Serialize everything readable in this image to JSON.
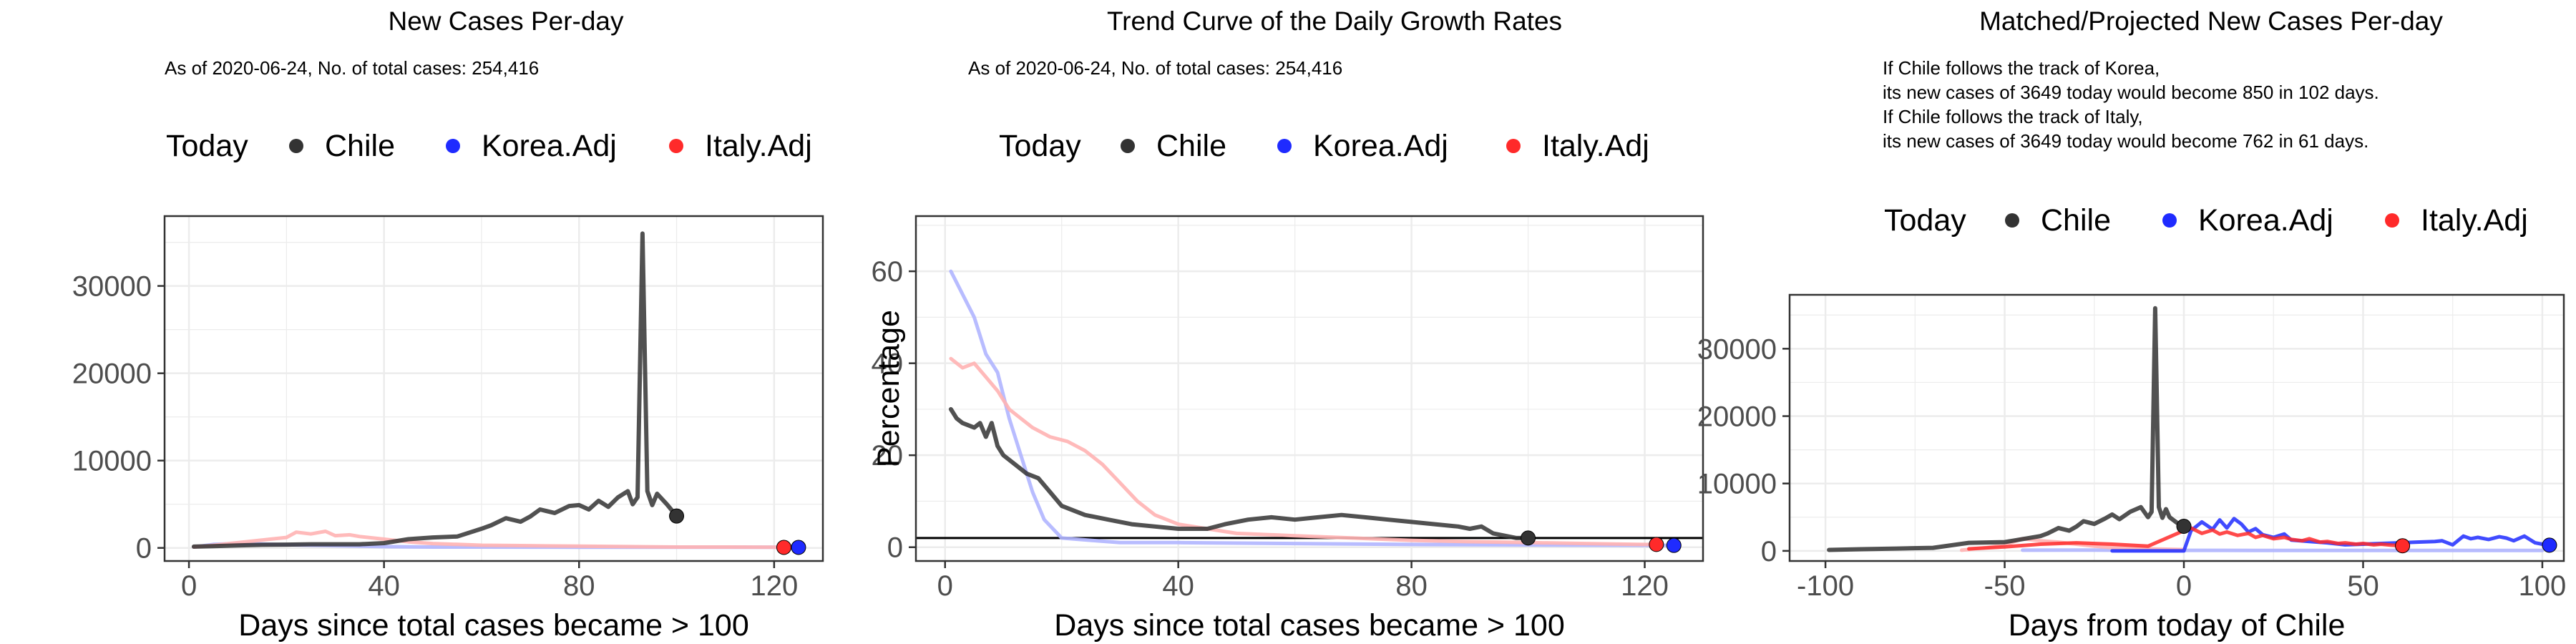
{
  "colors": {
    "today": "#000000",
    "chile": "#333333",
    "korea": "#1f2bff",
    "italy": "#ff2a2a",
    "korea_faded": "#b0b5ff",
    "italy_faded": "#ffb3b3",
    "grid": "#ececec",
    "panel_border": "#333333"
  },
  "chart_data": [
    {
      "type": "line",
      "title": "New Cases Per-day",
      "subtitle": "As of 2020-06-24, No. of total cases: 254,416",
      "legend": {
        "position": "top",
        "title": "Today",
        "entries": [
          "Chile",
          "Korea.Adj",
          "Italy.Adj"
        ]
      },
      "xlabel": "Days since total cases became > 100",
      "ylabel": "",
      "xlim": [
        -5,
        130
      ],
      "ylim": [
        -1500,
        38000
      ],
      "xticks": [
        0,
        40,
        80,
        120
      ],
      "yticks": [
        0,
        10000,
        20000,
        30000
      ],
      "grid": true,
      "series": [
        {
          "name": "Chile",
          "x": [
            1,
            5,
            10,
            15,
            20,
            25,
            30,
            35,
            40,
            45,
            50,
            55,
            60,
            62,
            65,
            68,
            70,
            72,
            75,
            78,
            80,
            82,
            84,
            86,
            88,
            90,
            91,
            92,
            93,
            94,
            95,
            96,
            98,
            100
          ],
          "y": [
            150,
            200,
            280,
            350,
            380,
            420,
            420,
            420,
            550,
            1000,
            1200,
            1300,
            2200,
            2600,
            3400,
            3000,
            3600,
            4400,
            4000,
            4800,
            4900,
            4400,
            5400,
            4700,
            5800,
            6500,
            5000,
            5800,
            36000,
            6500,
            4900,
            6200,
            5000,
            3649
          ]
        },
        {
          "name": "Korea.Adj",
          "x": [
            1,
            5,
            10,
            15,
            20,
            25,
            30,
            35,
            40,
            50,
            60,
            70,
            80,
            90,
            100,
            110,
            120,
            125
          ],
          "y": [
            100,
            400,
            500,
            450,
            350,
            300,
            250,
            200,
            150,
            100,
            100,
            90,
            80,
            80,
            70,
            70,
            70,
            60
          ]
        },
        {
          "name": "Italy.Adj",
          "x": [
            1,
            5,
            10,
            15,
            20,
            22,
            25,
            28,
            30,
            33,
            35,
            40,
            45,
            50,
            55,
            60,
            70,
            80,
            90,
            100,
            110,
            120,
            122
          ],
          "y": [
            100,
            300,
            600,
            900,
            1200,
            1800,
            1600,
            1900,
            1400,
            1500,
            1300,
            1000,
            700,
            500,
            400,
            300,
            250,
            200,
            150,
            100,
            100,
            80,
            60
          ]
        }
      ],
      "today_points": [
        {
          "name": "Chile",
          "x": 100,
          "y": 3649
        },
        {
          "name": "Korea.Adj",
          "x": 125,
          "y": 60
        },
        {
          "name": "Italy.Adj",
          "x": 122,
          "y": 60
        }
      ]
    },
    {
      "type": "line",
      "title": "Trend Curve of the Daily Growth Rates",
      "subtitle": "As of 2020-06-24, No. of total cases: 254,416",
      "legend": {
        "position": "top",
        "title": "Today",
        "entries": [
          "Chile",
          "Korea.Adj",
          "Italy.Adj"
        ]
      },
      "xlabel": "Days since total cases became > 100",
      "ylabel": "Percentage",
      "xlim": [
        -5,
        130
      ],
      "ylim": [
        -3,
        72
      ],
      "xticks": [
        0,
        40,
        80,
        120
      ],
      "yticks": [
        0,
        20,
        40,
        60
      ],
      "grid": true,
      "hline": 2,
      "series": [
        {
          "name": "Chile",
          "x": [
            1,
            2,
            3,
            5,
            6,
            7,
            8,
            9,
            10,
            12,
            14,
            16,
            18,
            20,
            24,
            28,
            32,
            36,
            40,
            45,
            48,
            52,
            56,
            60,
            64,
            68,
            72,
            76,
            80,
            84,
            88,
            90,
            92,
            94,
            96,
            98,
            100
          ],
          "y": [
            30,
            28,
            27,
            26,
            27,
            24,
            27,
            22,
            20,
            18,
            16,
            15,
            12,
            9,
            7,
            6,
            5,
            4.5,
            4,
            4,
            5,
            6,
            6.5,
            6,
            6.5,
            7,
            6.5,
            6,
            5.5,
            5,
            4.5,
            4,
            4.5,
            3,
            2.5,
            2,
            2
          ]
        },
        {
          "name": "Korea.Adj",
          "x": [
            1,
            3,
            5,
            7,
            9,
            11,
            13,
            15,
            17,
            20,
            25,
            30,
            40,
            60,
            80,
            100,
            120,
            125
          ],
          "y": [
            60,
            55,
            50,
            42,
            38,
            28,
            20,
            12,
            6,
            2,
            1.5,
            1,
            1,
            0.8,
            0.6,
            0.5,
            0.4,
            0.4
          ]
        },
        {
          "name": "Italy.Adj",
          "x": [
            1,
            3,
            5,
            7,
            9,
            11,
            13,
            15,
            18,
            21,
            24,
            27,
            30,
            33,
            36,
            40,
            45,
            50,
            60,
            70,
            80,
            90,
            100,
            110,
            120,
            122
          ],
          "y": [
            41,
            39,
            40,
            37,
            34,
            30,
            28,
            26,
            24,
            23,
            21,
            18,
            14,
            10,
            7,
            5,
            4,
            3,
            2.5,
            2,
            1.5,
            1.2,
            1,
            0.8,
            0.6,
            0.6
          ]
        }
      ],
      "today_points": [
        {
          "name": "Chile",
          "x": 100,
          "y": 2
        },
        {
          "name": "Korea.Adj",
          "x": 125,
          "y": 0.4
        },
        {
          "name": "Italy.Adj",
          "x": 122,
          "y": 0.6
        }
      ]
    },
    {
      "type": "line",
      "title": "Matched/Projected New Cases Per-day",
      "subtitle": "",
      "annotation_lines": [
        "If Chile follows the track of Korea,",
        "its new cases of 3649 today would become 850 in 102 days.",
        "If Chile follows the track of Italy,",
        "its new cases of 3649 today would become 762 in 61 days."
      ],
      "legend": {
        "position": "top",
        "title": "Today",
        "entries": [
          "Chile",
          "Korea.Adj",
          "Italy.Adj"
        ]
      },
      "xlabel": "Days from today of Chile",
      "ylabel": "",
      "xlim": [
        -110,
        106
      ],
      "ylim": [
        -1500,
        38000
      ],
      "xticks": [
        -100,
        -50,
        0,
        50,
        100
      ],
      "yticks": [
        0,
        10000,
        20000,
        30000
      ],
      "grid": true,
      "series": [
        {
          "name": "Chile",
          "x": [
            -99,
            -90,
            -80,
            -70,
            -60,
            -50,
            -40,
            -38,
            -35,
            -32,
            -30,
            -28,
            -25,
            -22,
            -20,
            -18,
            -15,
            -12,
            -10,
            -9,
            -8,
            -7,
            -6,
            -5,
            -4,
            -2,
            0
          ],
          "y": [
            150,
            250,
            350,
            450,
            1200,
            1300,
            2200,
            2600,
            3400,
            3000,
            3600,
            4400,
            4000,
            4800,
            5400,
            4700,
            5800,
            6500,
            5000,
            5800,
            36000,
            6500,
            4900,
            6200,
            5000,
            4200,
            3649
          ]
        },
        {
          "name": "Korea.Adj",
          "x": [
            -20,
            -10,
            0,
            2,
            5,
            8,
            10,
            12,
            14,
            16,
            18,
            20,
            22,
            25,
            28,
            30,
            35,
            40,
            45,
            50,
            55,
            60,
            65,
            70,
            72,
            75,
            78,
            80,
            82,
            85,
            88,
            90,
            92,
            95,
            98,
            100,
            102
          ],
          "y": [
            0,
            0,
            0,
            3000,
            4300,
            3200,
            4600,
            3400,
            4800,
            4000,
            2800,
            3300,
            2400,
            2000,
            2500,
            1600,
            1400,
            1200,
            900,
            1000,
            1100,
            1200,
            1300,
            1400,
            1500,
            900,
            2200,
            1800,
            2000,
            1700,
            2100,
            1900,
            1500,
            2200,
            1200,
            1000,
            850
          ]
        },
        {
          "name": "Italy.Adj",
          "x": [
            -60,
            -50,
            -40,
            -30,
            -20,
            -10,
            0,
            2,
            5,
            8,
            10,
            12,
            15,
            18,
            20,
            22,
            25,
            28,
            30,
            33,
            35,
            38,
            40,
            43,
            45,
            48,
            50,
            53,
            55,
            58,
            61
          ],
          "y": [
            300,
            600,
            1000,
            1200,
            1000,
            700,
            3000,
            3400,
            2600,
            3100,
            2500,
            2800,
            2300,
            2600,
            2000,
            2300,
            1800,
            2000,
            1700,
            1500,
            1800,
            1300,
            1400,
            1100,
            1200,
            1000,
            1100,
            900,
            1000,
            850,
            762
          ]
        },
        {
          "name": "Korea.Adj (history)",
          "x": [
            -45,
            -30,
            -20,
            -10,
            0,
            10,
            20,
            30,
            40,
            50,
            60,
            70,
            80,
            90,
            100
          ],
          "y": [
            100,
            120,
            100,
            90,
            80,
            80,
            70,
            70,
            70,
            60,
            60,
            60,
            60,
            60,
            60
          ]
        },
        {
          "name": "Italy.Adj (history)",
          "x": [
            -62,
            -55,
            -50,
            -45,
            -40,
            -35,
            -30,
            -25,
            -20,
            -15,
            -10,
            -5,
            0
          ],
          "y": [
            100,
            500,
            900,
            1800,
            1500,
            1300,
            1000,
            700,
            500,
            400,
            300,
            250,
            200
          ]
        }
      ],
      "today_points": [
        {
          "name": "Chile",
          "x": 0,
          "y": 3649
        },
        {
          "name": "Korea.Adj",
          "x": 102,
          "y": 850
        },
        {
          "name": "Italy.Adj",
          "x": 61,
          "y": 762
        }
      ]
    }
  ]
}
